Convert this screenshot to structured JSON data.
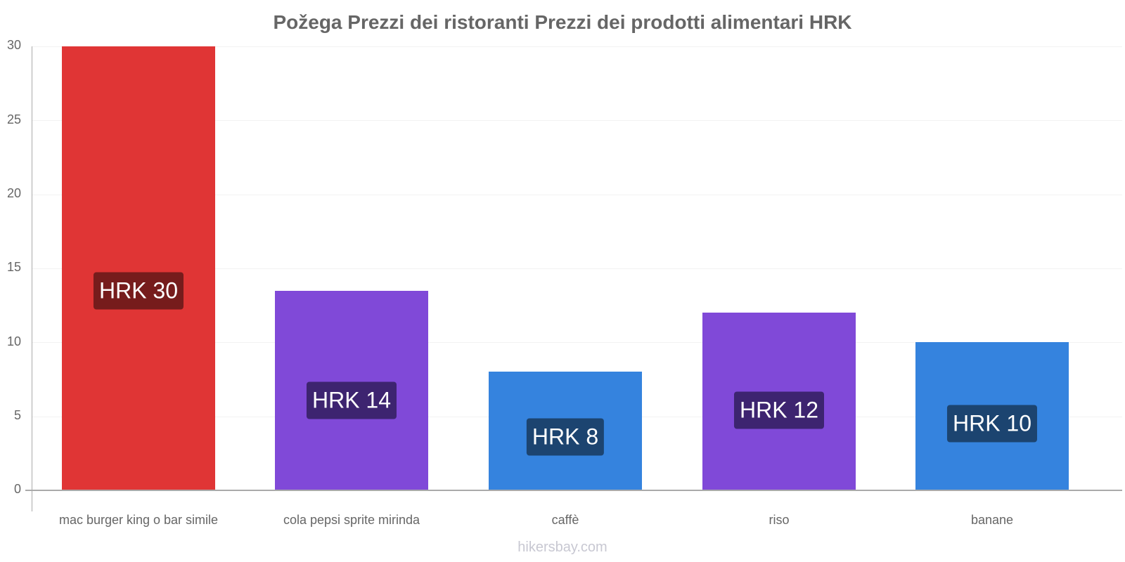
{
  "chart_data": {
    "type": "bar",
    "title": "Požega Prezzi dei ristoranti Prezzi dei prodotti alimentari HRK",
    "xlabel": "",
    "ylabel": "",
    "ylim": [
      0,
      30
    ],
    "yticks": [
      "0",
      "5",
      "10",
      "15",
      "20",
      "25",
      "30"
    ],
    "grid": true,
    "legend": "none",
    "categories": [
      "mac burger king o bar simile",
      "cola pepsi sprite mirinda",
      "caffè",
      "riso",
      "banane"
    ],
    "values": [
      30,
      13.5,
      8,
      12,
      10
    ],
    "data_labels": [
      "HRK 30",
      "HRK 14",
      "HRK 8",
      "HRK 12",
      "HRK 10"
    ],
    "bar_colors": [
      "#e03535",
      "#8049d8",
      "#3583de",
      "#8049d8",
      "#3583de"
    ],
    "label_bg_colors": [
      "#761c1c",
      "#3d2470",
      "#1c4470",
      "#3d2470",
      "#1c4470"
    ]
  },
  "watermark": "hikersbay.com"
}
